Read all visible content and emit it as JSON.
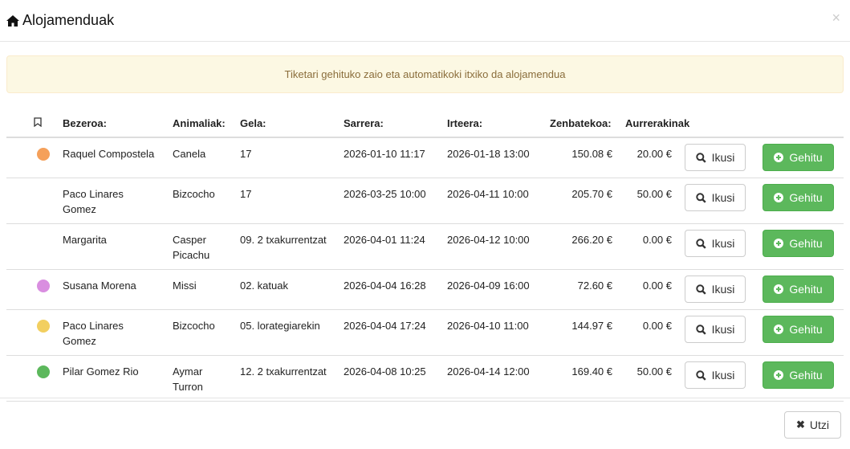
{
  "modal": {
    "title": "Alojamenduak",
    "title_icon": "home-icon",
    "close_label": "×"
  },
  "alert": {
    "text": "Tiketari gehituko zaio eta automatikoki itxiko da alojamendua"
  },
  "table": {
    "headers": {
      "bookmark_icon": "bookmark-icon",
      "client": "Bezeroa:",
      "animals": "Animaliak:",
      "room": "Gela:",
      "checkin": "Sarrera:",
      "checkout": "Irteera:",
      "amount": "Zenbatekoa:",
      "advance": "Aurrerakinak"
    },
    "rows": [
      {
        "color": "#f5a05a",
        "client": "Raquel Compostela",
        "animals": [
          "Canela"
        ],
        "room": "17",
        "checkin": "2026-01-10 11:17",
        "checkout": "2026-01-18 13:00",
        "amount": "150.08 €",
        "advance": "20.00 €"
      },
      {
        "color": "",
        "client": "Paco Linares Gomez",
        "animals": [
          "Bizcocho"
        ],
        "room": "17",
        "checkin": "2026-03-25 10:00",
        "checkout": "2026-04-11 10:00",
        "amount": "205.70 €",
        "advance": "50.00 €"
      },
      {
        "color": "",
        "client": "Margarita",
        "animals": [
          "Casper",
          "Picachu"
        ],
        "room": "09. 2 txakurrentzat",
        "checkin": "2026-04-01 11:24",
        "checkout": "2026-04-12 10:00",
        "amount": "266.20 €",
        "advance": "0.00 €"
      },
      {
        "color": "#d98ee0",
        "client": "Susana Morena",
        "animals": [
          "Missi"
        ],
        "room": "02. katuak",
        "checkin": "2026-04-04 16:28",
        "checkout": "2026-04-09 16:00",
        "amount": "72.60 €",
        "advance": "0.00 €"
      },
      {
        "color": "#f2cf60",
        "client": "Paco Linares Gomez",
        "animals": [
          "Bizcocho"
        ],
        "room": "05. lorategiarekin",
        "checkin": "2026-04-04 17:24",
        "checkout": "2026-04-10 11:00",
        "amount": "144.97 €",
        "advance": "0.00 €"
      },
      {
        "color": "#5cb85c",
        "client": "Pilar Gomez Rio",
        "animals": [
          "Aymar",
          "Turron"
        ],
        "room": "12. 2 txakurrentzat",
        "checkin": "2026-04-08 10:25",
        "checkout": "2026-04-14 12:00",
        "amount": "169.40 €",
        "advance": "50.00 €"
      }
    ],
    "view_label": "Ikusi",
    "add_label": "Gehitu"
  },
  "footer": {
    "cancel_label": "Utzi"
  },
  "colors": {
    "success": "#5cb85c",
    "alert_bg": "#fcf8e3",
    "alert_text": "#8a6d3b"
  }
}
